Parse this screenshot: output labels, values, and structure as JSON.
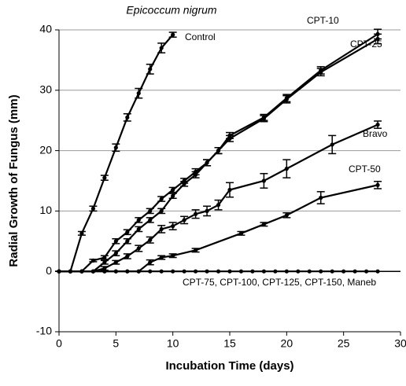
{
  "chart_data": {
    "type": "line",
    "title": "Epicoccum nigrum",
    "x_label": "Incubation Time (days)",
    "y_label": "Radial Growth of Fungus (mm)",
    "xlim": [
      0,
      30
    ],
    "xticks": [
      0,
      5,
      10,
      15,
      20,
      25,
      30
    ],
    "ylim": [
      -10,
      40
    ],
    "yticks": [
      -10,
      0,
      10,
      20,
      30,
      40
    ],
    "grid": true,
    "series": [
      {
        "name": "Control",
        "color": "#000000",
        "x": [
          0,
          1,
          2,
          3,
          4,
          5,
          6,
          7,
          8,
          9,
          10
        ],
        "values": [
          0,
          0,
          6.3,
          10.4,
          15.5,
          20.5,
          25.5,
          29.5,
          33.5,
          37,
          39.2
        ],
        "errors": [
          0,
          0,
          0.3,
          0.4,
          0.4,
          0.6,
          0.6,
          0.8,
          0.8,
          0.8,
          0.4
        ]
      },
      {
        "name": "CPT-10",
        "color": "#000000",
        "x": [
          0,
          1,
          2,
          3,
          4,
          5,
          6,
          7,
          8,
          9,
          10,
          11,
          12,
          13,
          14,
          15,
          18,
          20,
          23,
          28
        ],
        "values": [
          0,
          0,
          0,
          1.8,
          2.3,
          5,
          6.5,
          8.5,
          10,
          12,
          13.5,
          15,
          16.5,
          18,
          20,
          22.5,
          25.5,
          28.7,
          33.3,
          39.3
        ],
        "errors": [
          0,
          0,
          0,
          0.2,
          0.3,
          0.4,
          0.4,
          0.4,
          0.4,
          0.4,
          0.4,
          0.4,
          0.5,
          0.5,
          0.5,
          0.5,
          0.5,
          0.6,
          0.6,
          0.8
        ]
      },
      {
        "name": "CPT-25",
        "color": "#000000",
        "x": [
          0,
          1,
          2,
          3,
          4,
          5,
          6,
          7,
          8,
          9,
          10,
          11,
          12,
          13,
          14,
          15,
          18,
          20,
          23,
          28
        ],
        "values": [
          0,
          0,
          0,
          0,
          1.5,
          3,
          5,
          7,
          8.5,
          10,
          12.5,
          14.5,
          16,
          18,
          20,
          22,
          25.3,
          28.5,
          33,
          38.5
        ],
        "errors": [
          0,
          0,
          0,
          0,
          0.3,
          0.4,
          0.4,
          0.4,
          0.4,
          0.4,
          0.4,
          0.4,
          0.5,
          0.5,
          0.5,
          0.5,
          0.5,
          0.6,
          0.6,
          0.8
        ]
      },
      {
        "name": "Bravo",
        "color": "#000000",
        "x": [
          0,
          1,
          2,
          3,
          4,
          5,
          6,
          7,
          8,
          9,
          10,
          11,
          12,
          13,
          14,
          15,
          18,
          20,
          24,
          28
        ],
        "values": [
          0,
          0,
          0,
          0,
          0.5,
          1.5,
          2.5,
          3.8,
          5.2,
          7,
          7.5,
          8.5,
          9.5,
          10,
          11,
          13.5,
          15,
          17,
          21,
          24.3
        ],
        "errors": [
          0,
          0,
          0,
          0,
          0.3,
          0.3,
          0.4,
          0.5,
          0.5,
          0.6,
          0.6,
          0.6,
          0.7,
          0.8,
          0.8,
          1.2,
          1.2,
          1.5,
          1.5,
          0.6
        ]
      },
      {
        "name": "CPT-50",
        "color": "#000000",
        "x": [
          0,
          1,
          2,
          3,
          4,
          5,
          6,
          7,
          8,
          9,
          10,
          12,
          16,
          18,
          20,
          23,
          28
        ],
        "values": [
          0,
          0,
          0,
          0,
          0,
          0,
          0,
          0,
          1.5,
          2.3,
          2.6,
          3.5,
          6.3,
          7.8,
          9.3,
          12.2,
          14.3
        ],
        "errors": [
          0,
          0,
          0,
          0,
          0,
          0,
          0,
          0,
          0.4,
          0.3,
          0.3,
          0.3,
          0.3,
          0.3,
          0.4,
          1,
          0.6
        ]
      },
      {
        "name": "CPT-75, CPT-100, CPT-125, CPT-150, Maneb",
        "color": "#000000",
        "x": [
          0,
          1,
          2,
          3,
          4,
          5,
          6,
          7,
          8,
          9,
          10,
          11,
          12,
          13,
          14,
          15,
          16,
          17,
          18,
          19,
          20,
          21,
          22,
          23,
          24,
          25,
          26,
          27,
          28
        ],
        "values": [
          0,
          0,
          0,
          0,
          0,
          0,
          0,
          0,
          0,
          0,
          0,
          0,
          0,
          0,
          0,
          0,
          0,
          0,
          0,
          0,
          0,
          0,
          0,
          0,
          0,
          0,
          0,
          0,
          0
        ]
      }
    ]
  }
}
